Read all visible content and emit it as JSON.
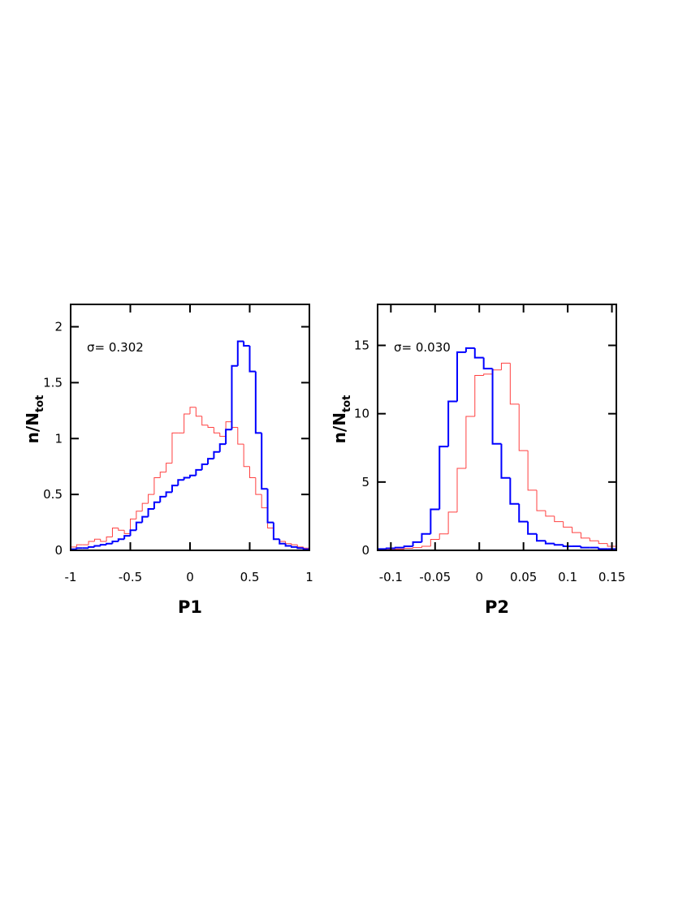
{
  "chart_data": [
    {
      "type": "histogram",
      "x_label": "P1",
      "y_label": "n/N",
      "y_label_sub": "tot",
      "annotation": "σ=  0.302",
      "xlim": [
        -1,
        1
      ],
      "ylim": [
        0,
        2.2
      ],
      "xticks": [
        -1,
        -0.5,
        0,
        0.5,
        1
      ],
      "yticks": [
        0,
        0.5,
        1,
        1.5,
        2
      ],
      "bins": [
        -1,
        -0.95,
        -0.9,
        -0.85,
        -0.8,
        -0.75,
        -0.7,
        -0.65,
        -0.6,
        -0.55,
        -0.5,
        -0.45,
        -0.4,
        -0.35,
        -0.3,
        -0.25,
        -0.2,
        -0.15,
        -0.1,
        -0.05,
        0,
        0.05,
        0.1,
        0.15,
        0.2,
        0.25,
        0.3,
        0.35,
        0.4,
        0.45,
        0.5,
        0.55,
        0.6,
        0.65,
        0.7,
        0.75,
        0.8,
        0.85,
        0.9,
        0.95,
        1
      ],
      "series": [
        {
          "color": "#ff4040",
          "width": 1,
          "values": [
            0.03,
            0.05,
            0.05,
            0.08,
            0.1,
            0.08,
            0.12,
            0.2,
            0.18,
            0.15,
            0.28,
            0.35,
            0.42,
            0.5,
            0.65,
            0.7,
            0.78,
            1.05,
            1.05,
            1.22,
            1.28,
            1.2,
            1.12,
            1.1,
            1.05,
            1.02,
            1.15,
            1.1,
            0.95,
            0.75,
            0.65,
            0.5,
            0.38,
            0.2,
            0.1,
            0.08,
            0.06,
            0.05,
            0.03,
            0.02
          ]
        },
        {
          "color": "#0000ff",
          "width": 2,
          "values": [
            0.01,
            0.02,
            0.02,
            0.03,
            0.04,
            0.05,
            0.06,
            0.08,
            0.1,
            0.13,
            0.18,
            0.25,
            0.3,
            0.37,
            0.43,
            0.48,
            0.52,
            0.58,
            0.63,
            0.65,
            0.67,
            0.72,
            0.77,
            0.82,
            0.88,
            0.95,
            1.08,
            1.65,
            1.87,
            1.83,
            1.6,
            1.05,
            0.55,
            0.25,
            0.1,
            0.06,
            0.04,
            0.03,
            0.02,
            0.01
          ]
        }
      ]
    },
    {
      "type": "histogram",
      "x_label": "P2",
      "y_label": "n/N",
      "y_label_sub": "tot",
      "annotation": "σ=  0.030",
      "xlim": [
        -0.115,
        0.155
      ],
      "ylim": [
        0,
        18
      ],
      "xticks": [
        -0.1,
        -0.05,
        0,
        0.05,
        0.1,
        0.15
      ],
      "yticks": [
        0,
        5,
        10,
        15
      ],
      "bins": [
        -0.115,
        -0.105,
        -0.095,
        -0.085,
        -0.075,
        -0.065,
        -0.055,
        -0.045,
        -0.035,
        -0.025,
        -0.015,
        -0.005,
        0.005,
        0.015,
        0.025,
        0.035,
        0.045,
        0.055,
        0.065,
        0.075,
        0.085,
        0.095,
        0.105,
        0.115,
        0.125,
        0.135,
        0.145,
        0.155
      ],
      "series": [
        {
          "color": "#ff4040",
          "width": 1,
          "values": [
            0,
            0.05,
            0.1,
            0.15,
            0.2,
            0.3,
            0.8,
            1.2,
            2.8,
            6.0,
            9.8,
            12.8,
            12.9,
            13.2,
            13.7,
            10.7,
            7.3,
            4.4,
            2.9,
            2.5,
            2.1,
            1.7,
            1.3,
            0.9,
            0.7,
            0.5,
            0.3
          ]
        },
        {
          "color": "#0000ff",
          "width": 2,
          "values": [
            0.1,
            0.15,
            0.2,
            0.3,
            0.6,
            1.2,
            3.0,
            7.6,
            10.9,
            14.5,
            14.8,
            14.1,
            13.3,
            7.8,
            5.3,
            3.4,
            2.1,
            1.2,
            0.7,
            0.5,
            0.4,
            0.3,
            0.3,
            0.2,
            0.2,
            0.1,
            0.1
          ]
        }
      ]
    }
  ]
}
